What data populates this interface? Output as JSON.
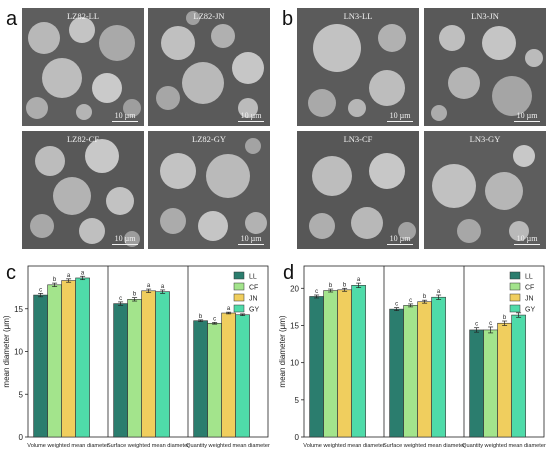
{
  "panels": {
    "a": "a",
    "b": "b",
    "c": "c",
    "d": "d"
  },
  "sem_images": {
    "a": [
      {
        "label": "LZ82-LL",
        "scale": "10 µm"
      },
      {
        "label": "LZ82-JN",
        "scale": "10 µm"
      },
      {
        "label": "LZ82-CF",
        "scale": "10 µm"
      },
      {
        "label": "LZ82-GY",
        "scale": "10 µm"
      }
    ],
    "b": [
      {
        "label": "LN3-LL",
        "scale": "10 µm"
      },
      {
        "label": "LN3-JN",
        "scale": "10 µm"
      },
      {
        "label": "LN3-CF",
        "scale": "10 µm"
      },
      {
        "label": "LN3-GY",
        "scale": "10 µm"
      }
    ]
  },
  "colors": {
    "LL": "#2b7d6e",
    "CF": "#a3e48c",
    "JN": "#f0ce5e",
    "GY": "#4fdba9"
  },
  "chart_data": [
    {
      "type": "bar",
      "panel": "c",
      "ylabel": "mean diameter (μm)",
      "ylim": [
        0,
        20
      ],
      "yticks": [
        0,
        5,
        10,
        15
      ],
      "categories": [
        "Volume weighted mean diameter",
        "Surface weighted mean diameter",
        "Quantity weighted mean diameter"
      ],
      "series": [
        {
          "name": "LL",
          "values": [
            16.6,
            15.6,
            13.6
          ],
          "errors": [
            0.2,
            0.2,
            0.1
          ],
          "letters": [
            "c",
            "c",
            "b"
          ]
        },
        {
          "name": "CF",
          "values": [
            17.8,
            16.1,
            13.3
          ],
          "errors": [
            0.2,
            0.2,
            0.1
          ],
          "letters": [
            "b",
            "b",
            "c"
          ]
        },
        {
          "name": "JN",
          "values": [
            18.3,
            17.1,
            14.5
          ],
          "errors": [
            0.2,
            0.2,
            0.1
          ],
          "letters": [
            "a",
            "a",
            "a"
          ]
        },
        {
          "name": "GY",
          "values": [
            18.6,
            17.0,
            14.3
          ],
          "errors": [
            0.2,
            0.2,
            0.1
          ],
          "letters": [
            "a",
            "a",
            "a"
          ]
        }
      ],
      "legend": [
        "LL",
        "CF",
        "JN",
        "GY"
      ],
      "legend_position": "top-right"
    },
    {
      "type": "bar",
      "panel": "d",
      "ylabel": "mean diameter (μm)",
      "ylim": [
        0,
        23
      ],
      "yticks": [
        0,
        5,
        10,
        15,
        20
      ],
      "categories": [
        "Volume weighted mean diameter",
        "Surface weighted mean diameter",
        "Quantity weighted mean diameter"
      ],
      "series": [
        {
          "name": "LL",
          "values": [
            18.9,
            17.2,
            14.4
          ],
          "errors": [
            0.2,
            0.2,
            0.3
          ],
          "letters": [
            "c",
            "c",
            "c"
          ]
        },
        {
          "name": "CF",
          "values": [
            19.7,
            17.7,
            14.4
          ],
          "errors": [
            0.2,
            0.2,
            0.4
          ],
          "letters": [
            "b",
            "c",
            "c"
          ]
        },
        {
          "name": "JN",
          "values": [
            19.8,
            18.2,
            15.3
          ],
          "errors": [
            0.2,
            0.2,
            0.3
          ],
          "letters": [
            "b",
            "b",
            "b"
          ]
        },
        {
          "name": "GY",
          "values": [
            20.4,
            18.8,
            16.4
          ],
          "errors": [
            0.3,
            0.3,
            0.3
          ],
          "letters": [
            "a",
            "a",
            "a"
          ]
        }
      ],
      "legend": [
        "LL",
        "CF",
        "JN",
        "GY"
      ],
      "legend_position": "top-right"
    }
  ]
}
